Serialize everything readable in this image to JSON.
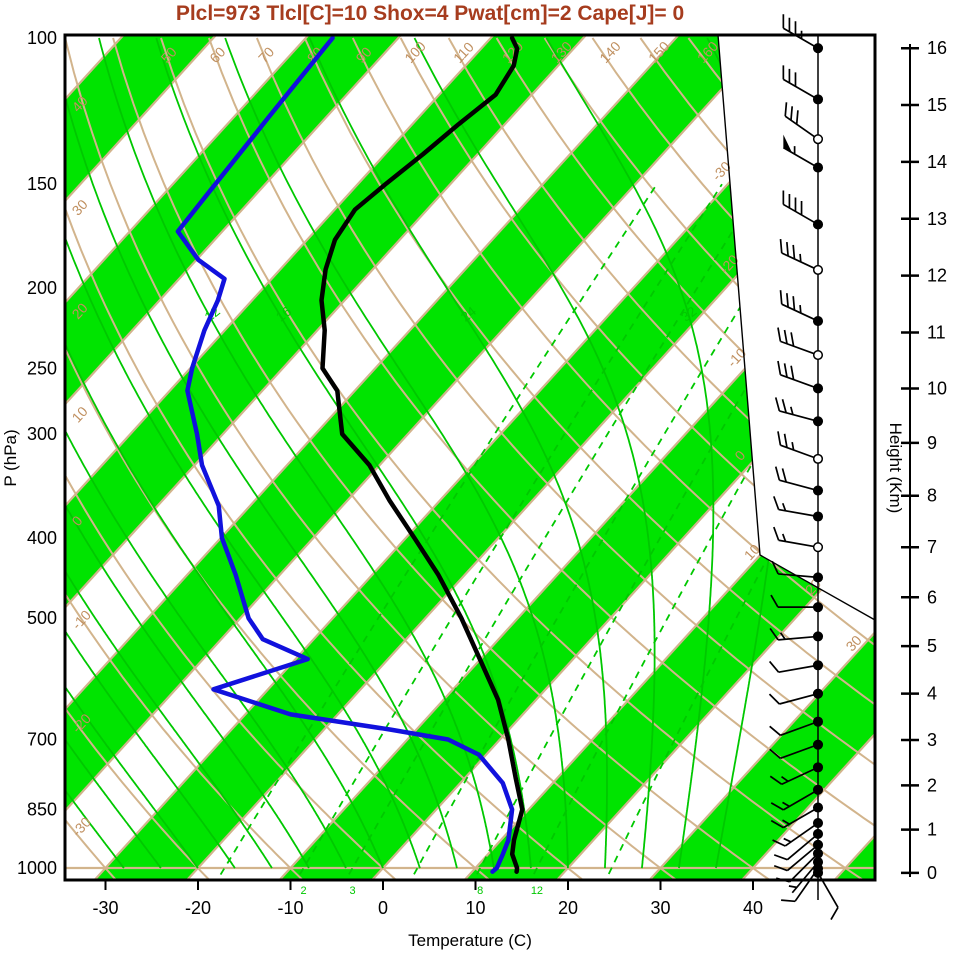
{
  "title": "Plcl=973 Tlcl[C]=10 Shox=4 Pwat[cm]=2 Cape[J]= 0",
  "colors": {
    "title": "#a63c1e",
    "band_green": "#00e400",
    "line_green": "#00c800",
    "line_tan": "#d2b48c",
    "label_tan": "#c09060",
    "temp_curve": "#000000",
    "dewpoint_curve": "#1111dd",
    "axis": "#000000"
  },
  "axes": {
    "pressure": {
      "label": "P (hPa)",
      "ticks": [
        100,
        150,
        200,
        250,
        300,
        400,
        500,
        700,
        850,
        1000
      ]
    },
    "temperature": {
      "label": "Temperature (C)",
      "ticks": [
        -30,
        -20,
        -10,
        0,
        10,
        20,
        30,
        40
      ]
    },
    "height": {
      "label": "Height (Km)",
      "ticks": [
        0,
        1,
        2,
        3,
        4,
        5,
        6,
        7,
        8,
        9,
        10,
        11,
        12,
        13,
        14,
        15,
        16
      ]
    }
  },
  "grid": {
    "isotherm_interval_c": 10,
    "shaded_band_tens": "odd",
    "dry_adiabat_top_labels": [
      50,
      60,
      70,
      80,
      90,
      100,
      110,
      120,
      130,
      140,
      150,
      160
    ],
    "dry_adiabat_left_labels": [
      40,
      30,
      20,
      10,
      0,
      -10,
      -20,
      -30
    ],
    "isotherm_right_labels_upper": [
      0,
      -10,
      -20,
      -30
    ],
    "isotherm_right_labels_lower": [
      10,
      20
    ],
    "isotherm_right_labels_edge": [
      30
    ],
    "moist_adiabat_labels": [
      12,
      16,
      24,
      32
    ],
    "mixing_ratio_lines_gkg": [
      1,
      2,
      3,
      5,
      8,
      12,
      20
    ],
    "mixing_ratio_labels_gkg": [
      2,
      3,
      8,
      12
    ]
  },
  "chart_data": {
    "type": "skewt-logp-sounding",
    "pressure_range_hpa": [
      100,
      1050
    ],
    "temp_axis_range_c": [
      -35,
      45
    ],
    "temperature_profile": [
      {
        "p": 1010,
        "t": 14.8
      },
      {
        "p": 1000,
        "t": 14.5
      },
      {
        "p": 962,
        "t": 12.6
      },
      {
        "p": 925,
        "t": 11.4
      },
      {
        "p": 850,
        "t": 9.3
      },
      {
        "p": 779,
        "t": 5.5
      },
      {
        "p": 700,
        "t": 0.9
      },
      {
        "p": 627,
        "t": -4.1
      },
      {
        "p": 561,
        "t": -10.0
      },
      {
        "p": 500,
        "t": -16.1
      },
      {
        "p": 443,
        "t": -22.9
      },
      {
        "p": 400,
        "t": -29.1
      },
      {
        "p": 361,
        "t": -35.4
      },
      {
        "p": 327,
        "t": -41.1
      },
      {
        "p": 300,
        "t": -47.1
      },
      {
        "p": 266,
        "t": -51.9
      },
      {
        "p": 250,
        "t": -55.7
      },
      {
        "p": 225,
        "t": -59.2
      },
      {
        "p": 207,
        "t": -62.5
      },
      {
        "p": 190,
        "t": -65.1
      },
      {
        "p": 175,
        "t": -67.0
      },
      {
        "p": 161,
        "t": -67.8
      },
      {
        "p": 150,
        "t": -67.0
      },
      {
        "p": 138,
        "t": -65.9
      },
      {
        "p": 127,
        "t": -65.0
      },
      {
        "p": 117,
        "t": -63.9
      },
      {
        "p": 108,
        "t": -64.8
      },
      {
        "p": 103,
        "t": -66.1
      },
      {
        "p": 100,
        "t": -67.7
      }
    ],
    "dewpoint_profile": [
      {
        "p": 1010,
        "td": 12.2
      },
      {
        "p": 1000,
        "td": 12.3
      },
      {
        "p": 962,
        "td": 11.6
      },
      {
        "p": 925,
        "td": 10.8
      },
      {
        "p": 850,
        "td": 8.2
      },
      {
        "p": 790,
        "td": 4.6
      },
      {
        "p": 730,
        "td": -0.8
      },
      {
        "p": 700,
        "td": -5.6
      },
      {
        "p": 681,
        "td": -12.8
      },
      {
        "p": 653,
        "td": -25.1
      },
      {
        "p": 609,
        "td": -35.9
      },
      {
        "p": 560,
        "td": -28.7
      },
      {
        "p": 530,
        "td": -35.5
      },
      {
        "p": 500,
        "td": -39.1
      },
      {
        "p": 443,
        "td": -44.8
      },
      {
        "p": 400,
        "td": -49.9
      },
      {
        "p": 366,
        "td": -53.4
      },
      {
        "p": 327,
        "td": -59.2
      },
      {
        "p": 300,
        "td": -62.8
      },
      {
        "p": 266,
        "td": -68.1
      },
      {
        "p": 250,
        "td": -69.8
      },
      {
        "p": 225,
        "td": -72.2
      },
      {
        "p": 207,
        "td": -73.7
      },
      {
        "p": 195,
        "td": -75.1
      },
      {
        "p": 185,
        "td": -79.8
      },
      {
        "p": 171,
        "td": -84.8
      },
      {
        "p": 150,
        "td": -85.4
      },
      {
        "p": 125,
        "td": -86.2
      },
      {
        "p": 100,
        "td": -87.1
      }
    ],
    "wind_profile_kt": [
      {
        "km": 16,
        "kt": 35,
        "dir": 300
      },
      {
        "km": 15.1,
        "kt": 30,
        "dir": 300
      },
      {
        "km": 14.4,
        "kt": 30,
        "dir": 305,
        "open": true
      },
      {
        "km": 13.9,
        "kt": 55,
        "dir": 300
      },
      {
        "km": 12.9,
        "kt": 40,
        "dir": 300
      },
      {
        "km": 12.1,
        "kt": 35,
        "dir": 295,
        "open": true
      },
      {
        "km": 11.2,
        "kt": 35,
        "dir": 295
      },
      {
        "km": 10.6,
        "kt": 30,
        "dir": 290,
        "open": true
      },
      {
        "km": 10,
        "kt": 30,
        "dir": 290
      },
      {
        "km": 9.4,
        "kt": 25,
        "dir": 285
      },
      {
        "km": 8.7,
        "kt": 25,
        "dir": 290,
        "open": true
      },
      {
        "km": 8.1,
        "kt": 20,
        "dir": 285
      },
      {
        "km": 7.6,
        "kt": 15,
        "dir": 280
      },
      {
        "km": 7,
        "kt": 15,
        "dir": 280,
        "open": true
      },
      {
        "km": 6.4,
        "kt": 10,
        "dir": 275
      },
      {
        "km": 5.8,
        "kt": 10,
        "dir": 270
      },
      {
        "km": 5.2,
        "kt": 15,
        "dir": 265
      },
      {
        "km": 4.6,
        "kt": 10,
        "dir": 260
      },
      {
        "km": 4,
        "kt": 10,
        "dir": 255
      },
      {
        "km": 3.4,
        "kt": 10,
        "dir": 250
      },
      {
        "km": 2.9,
        "kt": 10,
        "dir": 250
      },
      {
        "km": 2.4,
        "kt": 15,
        "dir": 245
      },
      {
        "km": 1.9,
        "kt": 15,
        "dir": 240
      },
      {
        "km": 1.5,
        "kt": 15,
        "dir": 240
      },
      {
        "km": 1.15,
        "kt": 15,
        "dir": 235
      },
      {
        "km": 0.9,
        "kt": 10,
        "dir": 230
      },
      {
        "km": 0.65,
        "kt": 10,
        "dir": 230
      },
      {
        "km": 0.45,
        "kt": 10,
        "dir": 225
      },
      {
        "km": 0.25,
        "kt": 5,
        "dir": 220
      },
      {
        "km": 0.1,
        "kt": 10,
        "dir": 215
      },
      {
        "km": 0,
        "kt": 10,
        "dir": 150
      }
    ]
  }
}
